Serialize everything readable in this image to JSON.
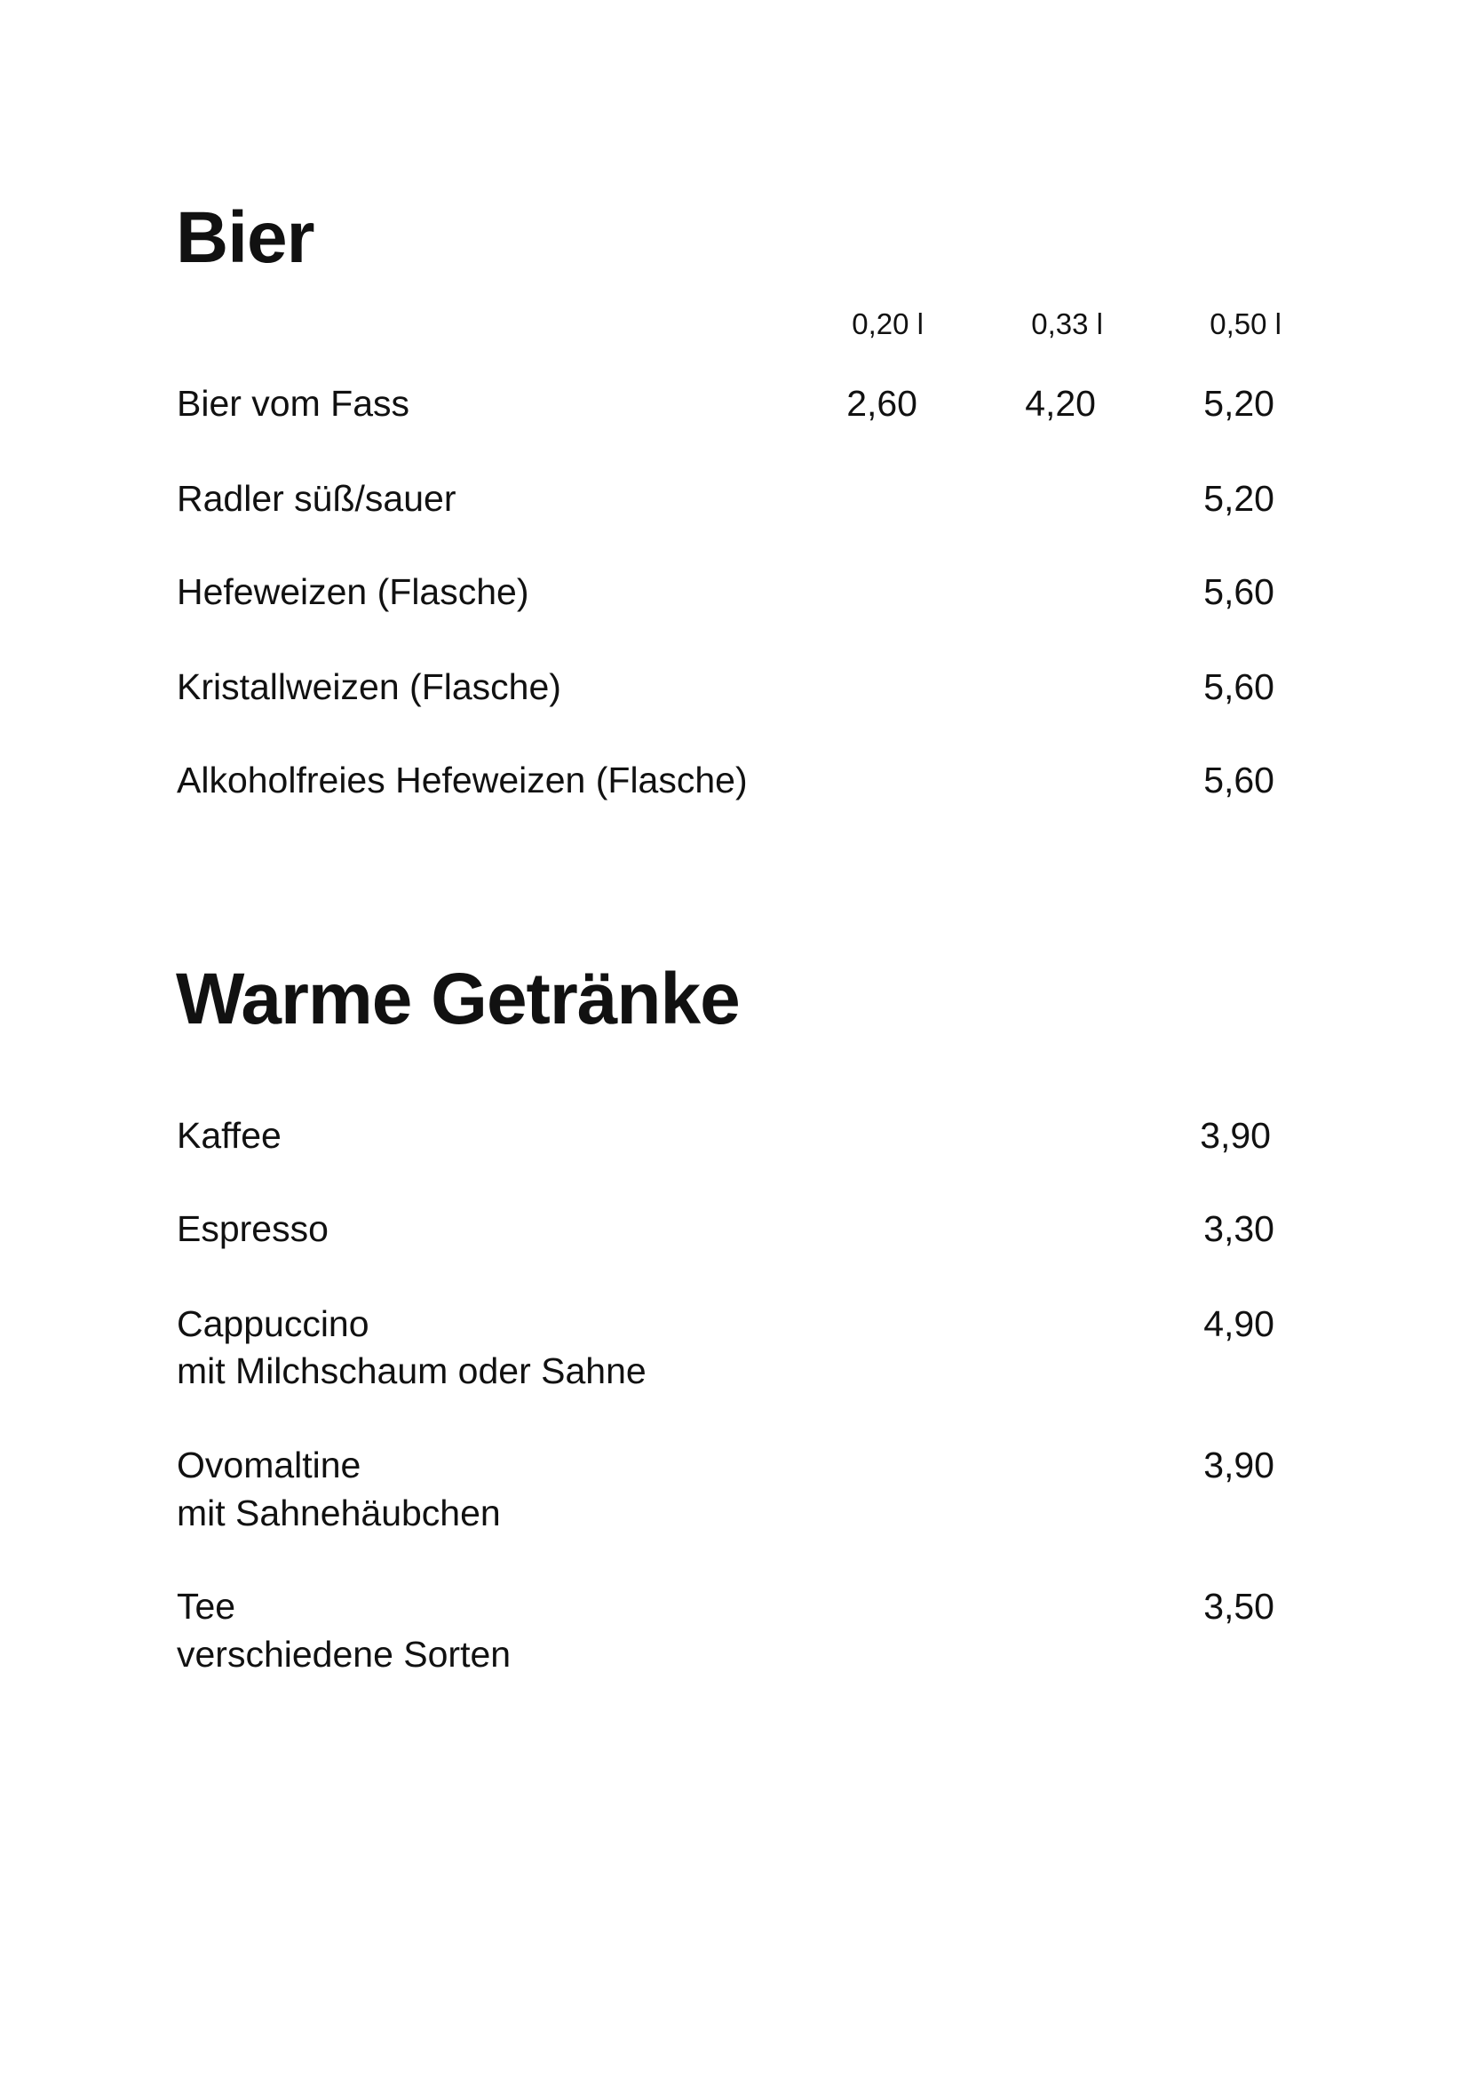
{
  "sections": [
    {
      "title": "Bier",
      "columns": [
        "0,20 l",
        "0,33 l",
        "0,50 l"
      ],
      "items": [
        {
          "name": "Bier vom Fass",
          "prices": [
            "2,60",
            "4,20",
            "5,20"
          ]
        },
        {
          "name": "Radler süß/sauer",
          "prices": [
            "5,20"
          ]
        },
        {
          "name": "Hefeweizen (Flasche)",
          "prices": [
            "5,60"
          ]
        },
        {
          "name": "Kristallweizen (Flasche)",
          "prices": [
            "5,60"
          ]
        },
        {
          "name": "Alkoholfreies Hefeweizen (Flasche)",
          "prices": [
            "5,60"
          ]
        }
      ]
    },
    {
      "title": "Warme Getränke",
      "items": [
        {
          "name": "Kaffee",
          "price": "3,90"
        },
        {
          "name": "Espresso",
          "price": "3,30"
        },
        {
          "name": "Cappuccino",
          "description": "mit Milchschaum oder Sahne",
          "price": "4,90"
        },
        {
          "name": "Ovomaltine",
          "description": "mit Sahnehäubchen",
          "price": "3,90"
        },
        {
          "name": "Tee",
          "description": "verschiedene Sorten",
          "price": "3,50"
        }
      ]
    }
  ]
}
